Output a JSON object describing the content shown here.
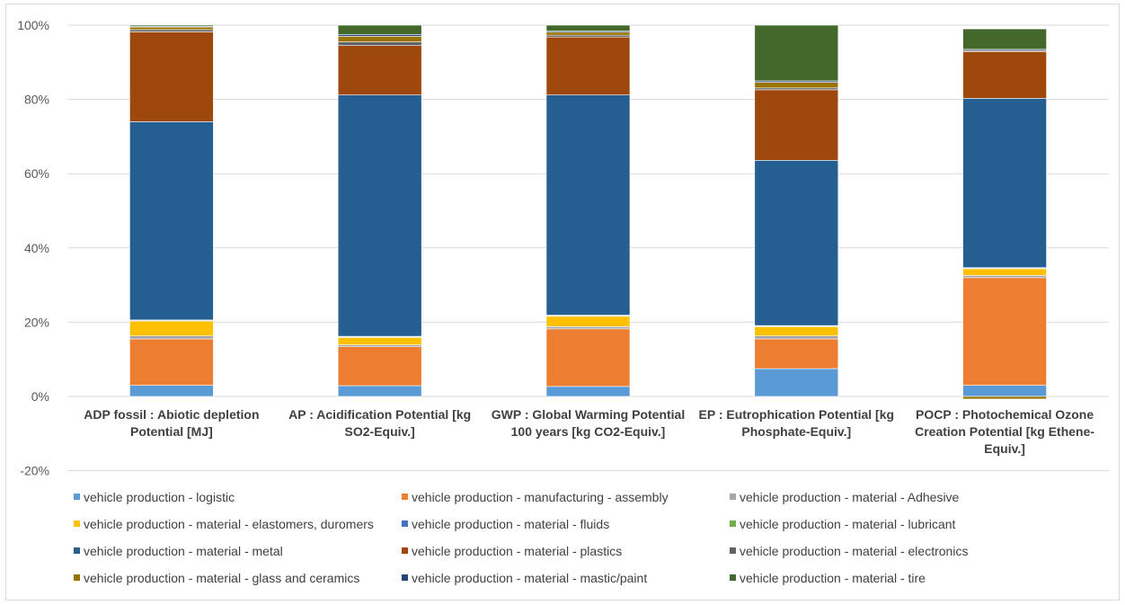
{
  "chart_data": {
    "type": "bar",
    "stacked": true,
    "title": "",
    "xlabel": "",
    "ylabel": "",
    "ylim": [
      -20,
      100
    ],
    "yticks": [
      -20,
      0,
      20,
      40,
      60,
      80,
      100
    ],
    "ytick_labels": [
      "-20%",
      "0%",
      "20%",
      "40%",
      "60%",
      "80%",
      "100%"
    ],
    "grid": true,
    "legend_position": "bottom",
    "categories": [
      [
        "ADP fossil : Abiotic depletion",
        "Potential [MJ]"
      ],
      [
        "AP : Acidification Potential [kg",
        "SO2-Equiv.]"
      ],
      [
        "GWP : Global Warming Potential",
        "100 years [kg CO2-Equiv.]"
      ],
      [
        "EP : Eutrophication Potential [kg",
        "Phosphate-Equiv.]"
      ],
      [
        "POCP : Photochemical Ozone",
        "Creation Potential [kg Ethene-",
        "Equiv.]"
      ]
    ],
    "series": [
      {
        "name": "vehicle production - logistic",
        "color": "#5b9bd5",
        "values": [
          3.0,
          2.9,
          2.7,
          7.5,
          3.0
        ]
      },
      {
        "name": "vehicle production - manufacturing - assembly",
        "color": "#ed7d31",
        "values": [
          12.5,
          10.5,
          15.5,
          8.0,
          29.0
        ]
      },
      {
        "name": "vehicle production - material - Adhesive",
        "color": "#a5a5a5",
        "values": [
          0.8,
          0.5,
          0.6,
          0.8,
          0.6
        ]
      },
      {
        "name": "vehicle production - material - elastomers, duromers",
        "color": "#ffc000",
        "values": [
          4.0,
          2.0,
          2.8,
          2.5,
          1.8
        ]
      },
      {
        "name": "vehicle production - material - fluids",
        "color": "#4472c4",
        "values": [
          0.2,
          0.2,
          0.2,
          0.2,
          0.2
        ]
      },
      {
        "name": "vehicle production - material - lubricant",
        "color": "#70ad47",
        "values": [
          0.1,
          0.1,
          0.1,
          0.1,
          0.1
        ]
      },
      {
        "name": "vehicle production - material - metal",
        "color": "#255e91",
        "values": [
          53.4,
          65.0,
          59.3,
          44.5,
          45.6
        ]
      },
      {
        "name": "vehicle production - material - plastics",
        "color": "#9e480e",
        "values": [
          24.2,
          13.3,
          15.6,
          19.0,
          12.6
        ]
      },
      {
        "name": "vehicle production - material - electronics",
        "color": "#636363",
        "values": [
          0.6,
          1.0,
          0.5,
          0.5,
          0.3
        ]
      },
      {
        "name": "vehicle production - material - glass and ceramics",
        "color": "#997300",
        "values": [
          0.7,
          1.5,
          0.8,
          1.5,
          -0.7
        ]
      },
      {
        "name": "vehicle production - material - mastic/paint",
        "color": "#264478",
        "values": [
          0.2,
          0.5,
          0.3,
          0.4,
          0.3
        ]
      },
      {
        "name": "vehicle production - material - tire",
        "color": "#43682b",
        "values": [
          0.3,
          2.5,
          1.6,
          15.0,
          5.5
        ]
      }
    ]
  }
}
